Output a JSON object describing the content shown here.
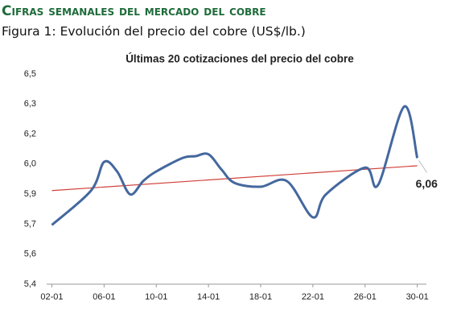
{
  "header": "Cifras semanales del mercado del cobre",
  "subtitle": "Figura 1: Evolución del precio del cobre (US$/lb.)",
  "chart_data": {
    "type": "line",
    "title": "Últimas 20 cotizaciones del precio del cobre",
    "x": [
      2,
      5,
      6,
      7,
      8,
      9,
      10,
      12,
      13,
      14,
      15,
      16,
      18,
      20,
      22,
      23,
      26,
      27,
      29,
      30
    ],
    "series": [
      {
        "name": "Precio del cobre",
        "color": "#44689e",
        "values": [
          5.71,
          5.89,
          6.04,
          5.99,
          5.87,
          5.94,
          5.99,
          6.06,
          6.07,
          6.08,
          6.0,
          5.93,
          5.91,
          5.94,
          5.75,
          5.87,
          6.01,
          5.92,
          6.33,
          6.06
        ],
        "value_labels": [
          null,
          null,
          null,
          null,
          null,
          null,
          null,
          null,
          null,
          null,
          null,
          null,
          null,
          null,
          null,
          null,
          null,
          null,
          null,
          "6,06"
        ]
      }
    ],
    "trendline": {
      "color": "#d0403a",
      "x": [
        2,
        30
      ],
      "values": [
        5.89,
        6.02
      ]
    },
    "xlim": [
      1.6,
      30.7
    ],
    "xticks": [
      {
        "value": 2,
        "label": "02-01"
      },
      {
        "value": 6,
        "label": "06-01"
      },
      {
        "value": 10,
        "label": "10-01"
      },
      {
        "value": 14,
        "label": "14-01"
      },
      {
        "value": 18,
        "label": "18-01"
      },
      {
        "value": 22,
        "label": "22-01"
      },
      {
        "value": 26,
        "label": "26-01"
      },
      {
        "value": 30,
        "label": "30-01"
      }
    ],
    "ylim": [
      5.4,
      6.5
    ],
    "yticks": [
      {
        "value": 5.4,
        "label": "5,4"
      },
      {
        "value": 5.557,
        "label": "5,6"
      },
      {
        "value": 5.714,
        "label": "5,7"
      },
      {
        "value": 5.871,
        "label": "5,9"
      },
      {
        "value": 6.029,
        "label": "6,0"
      },
      {
        "value": 6.186,
        "label": "6,2"
      },
      {
        "value": 6.343,
        "label": "6,3"
      },
      {
        "value": 6.5,
        "label": "6,5"
      }
    ],
    "grid": false
  }
}
